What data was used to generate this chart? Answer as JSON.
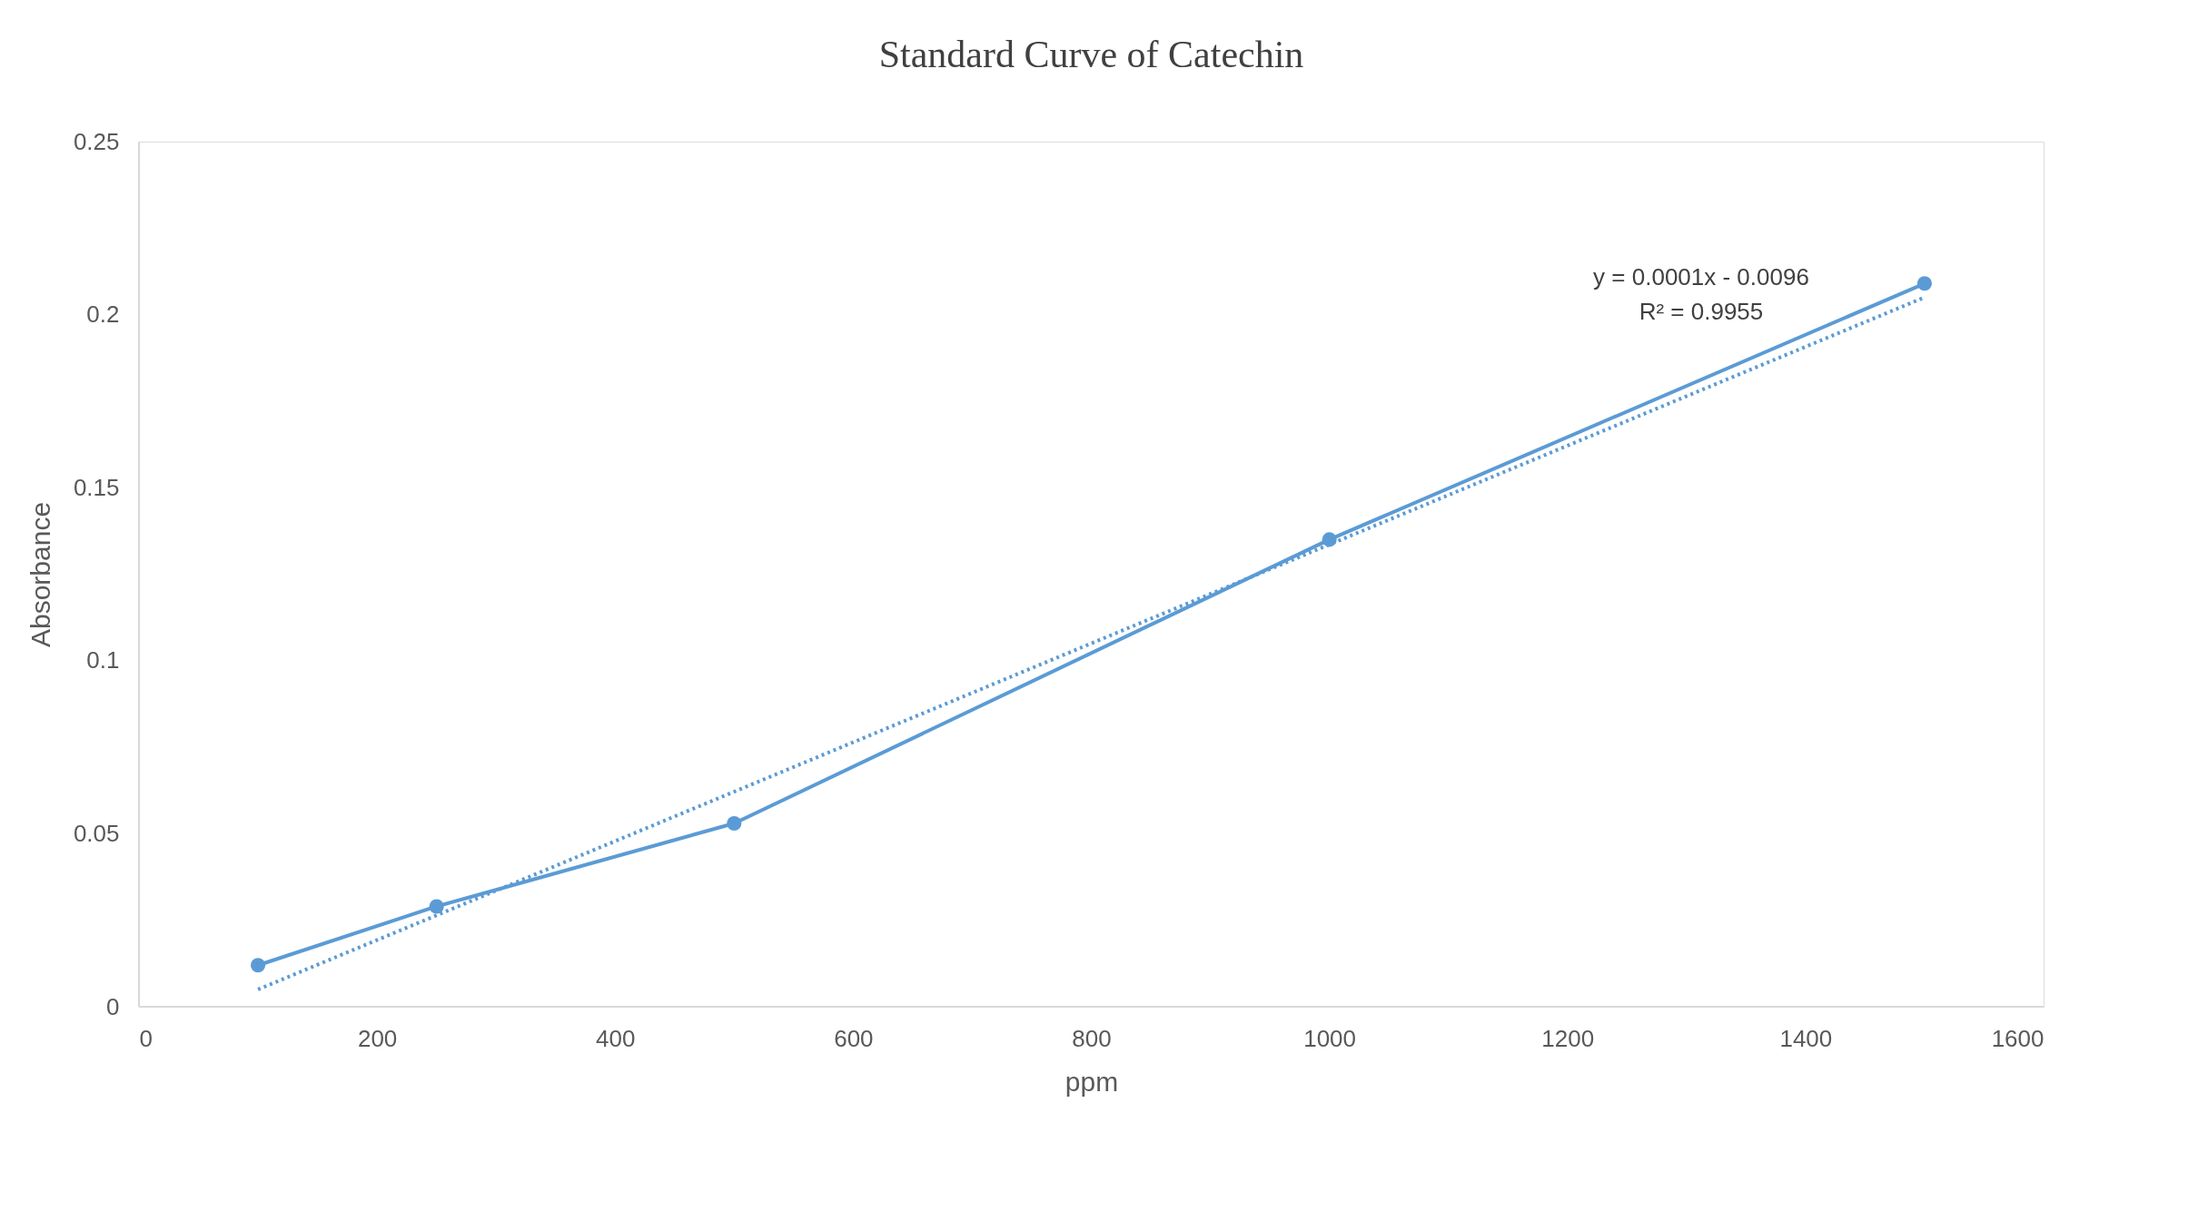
{
  "chart_data": {
    "type": "line",
    "title": "Standard Curve of Catechin",
    "xlabel": "ppm",
    "ylabel": "Absorbance",
    "x": [
      100,
      250,
      500,
      1000,
      1500
    ],
    "series": [
      {
        "color": "#5b9bd5",
        "values": [
          0.012,
          0.029,
          0.053,
          0.135,
          0.209
        ],
        "marker": "circle",
        "line_style": "solid"
      },
      {
        "type": "line",
        "color": "#5b9bd5",
        "x": [
          100,
          1500
        ],
        "values": [
          0.005,
          0.205
        ],
        "marker": "none",
        "line_style": "dotted"
      }
    ],
    "xlim": [
      0,
      1600
    ],
    "xticks": [
      0,
      200,
      400,
      600,
      800,
      1000,
      1200,
      1400,
      1600
    ],
    "ylim": [
      0,
      0.25
    ],
    "yticks": [
      0,
      0.05,
      0.1,
      0.15,
      0.2,
      0.25
    ],
    "annotations": [
      "y = 0.0001x - 0.0096",
      "R² = 0.9955"
    ],
    "grid": false
  }
}
